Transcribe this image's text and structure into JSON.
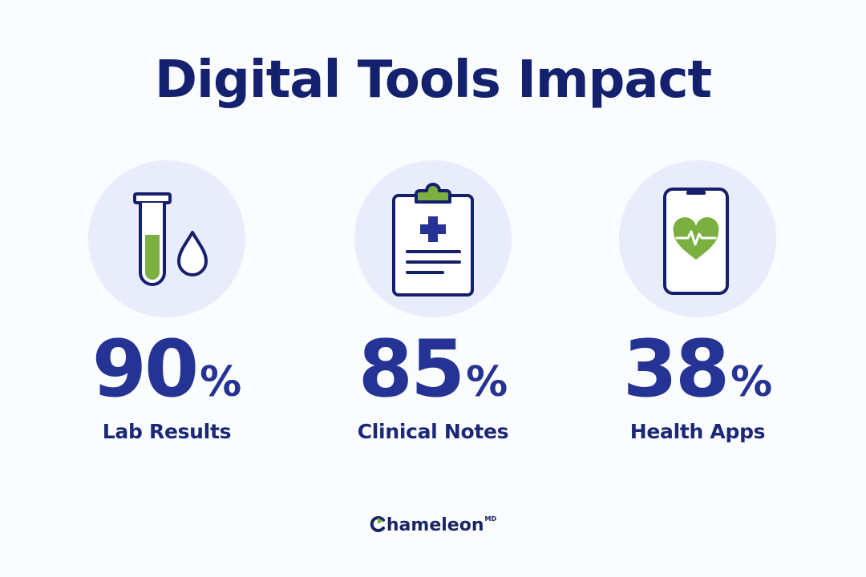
{
  "title": "Digital Tools Impact",
  "colors": {
    "primary": "#253394",
    "accent_green": "#7bb040",
    "circle_bg": "#e9edfb"
  },
  "stats": [
    {
      "icon": "test-tube-droplet-icon",
      "value": "90",
      "unit": "%",
      "label": "Lab Results"
    },
    {
      "icon": "clipboard-medical-icon",
      "value": "85",
      "unit": "%",
      "label": "Clinical Notes"
    },
    {
      "icon": "phone-heart-icon",
      "value": "38",
      "unit": "%",
      "label": "Health Apps"
    }
  ],
  "logo": {
    "text": "hameleon",
    "superscript": "MD"
  }
}
